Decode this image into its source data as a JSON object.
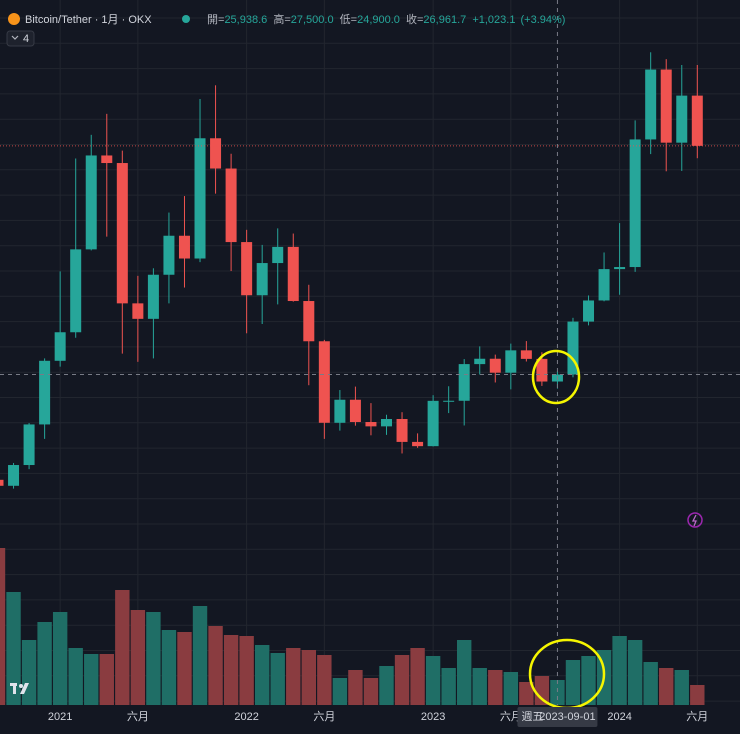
{
  "chart_data": {
    "type": "candlestick",
    "header": {
      "symbol": "Bitcoin/Tether · 1月 · OKX",
      "open": {
        "label": "開=",
        "value": "25,938.6"
      },
      "high": {
        "label": "高=",
        "value": "27,500.0"
      },
      "low": {
        "label": "低=",
        "value": "24,900.0"
      },
      "close": {
        "label": "收=",
        "value": "26,961.7"
      },
      "change": "+1,023.1",
      "change_percent": "(+3.94%)",
      "indicator_count": "4"
    },
    "x": [
      "2020-09-01",
      "2020-10-01",
      "2020-11-01",
      "2020-12-01",
      "2021-01-01",
      "2021-02-01",
      "2021-03-01",
      "2021-04-01",
      "2021-05-01",
      "2021-06-01",
      "2021-07-01",
      "2021-08-01",
      "2021-09-01",
      "2021-10-01",
      "2021-11-01",
      "2021-12-01",
      "2022-01-01",
      "2022-02-01",
      "2022-03-01",
      "2022-04-01",
      "2022-05-01",
      "2022-06-01",
      "2022-07-01",
      "2022-08-01",
      "2022-09-01",
      "2022-10-01",
      "2022-11-01",
      "2022-12-01",
      "2023-01-01",
      "2023-02-01",
      "2023-03-01",
      "2023-04-01",
      "2023-05-01",
      "2023-06-01",
      "2023-07-01",
      "2023-08-01",
      "2023-09-01",
      "2023-10-01",
      "2023-11-01",
      "2023-12-01",
      "2024-01-01",
      "2024-02-01",
      "2024-03-01",
      "2024-04-01",
      "2024-05-01",
      "2024-06-01"
    ],
    "open": [
      11650,
      10780,
      13800,
      19700,
      28950,
      33100,
      45150,
      58800,
      57700,
      37300,
      35050,
      41460,
      47130,
      43820,
      61300,
      56900,
      46210,
      38480,
      43160,
      45510,
      37640,
      31790,
      19940,
      23290,
      20050,
      19420,
      20490,
      17160,
      16540,
      23130,
      23140,
      28470,
      29250,
      27220,
      30470,
      29230,
      25938.6,
      26961.7,
      34650,
      37720,
      42280,
      42580,
      61130,
      71290,
      60660,
      67500
    ],
    "high": [
      12050,
      14100,
      19900,
      29300,
      41950,
      58350,
      61800,
      64850,
      59500,
      41300,
      42400,
      50500,
      52900,
      67000,
      69000,
      59050,
      47990,
      45800,
      48200,
      47450,
      40000,
      31990,
      24700,
      25200,
      22800,
      21100,
      21480,
      18400,
      23950,
      25250,
      29200,
      31050,
      29850,
      31450,
      31820,
      30200,
      27500,
      35200,
      38450,
      44700,
      48970,
      63900,
      73800,
      72800,
      71950,
      71950
    ],
    "low": [
      9850,
      10370,
      13200,
      17600,
      28100,
      32300,
      45000,
      47000,
      30000,
      28800,
      29300,
      37300,
      39600,
      43300,
      53250,
      42000,
      32950,
      34300,
      37150,
      37550,
      25400,
      17600,
      18800,
      19520,
      18120,
      18180,
      15480,
      16300,
      16500,
      21350,
      19550,
      26950,
      25800,
      24800,
      28850,
      25300,
      24900,
      26550,
      34100,
      37600,
      38550,
      41880,
      59000,
      56500,
      56550,
      58400
    ],
    "close": [
      10780,
      13800,
      19700,
      28950,
      33100,
      45150,
      58800,
      57700,
      37300,
      35050,
      41460,
      47130,
      43820,
      61300,
      56900,
      46210,
      38480,
      43160,
      45510,
      37640,
      31790,
      19940,
      23290,
      20050,
      19420,
      20490,
      17160,
      16540,
      23130,
      23140,
      28470,
      29250,
      27220,
      30470,
      29230,
      25938.6,
      26961.7,
      34650,
      37720,
      42280,
      42580,
      61130,
      71290,
      60660,
      67500,
      60200
    ],
    "volume": [
      157,
      113,
      65,
      83,
      93,
      57,
      51,
      51,
      115,
      95,
      93,
      75,
      73,
      99,
      79,
      70,
      69,
      60,
      52,
      57,
      55,
      50,
      27,
      35,
      27,
      39,
      50,
      57,
      49,
      37,
      65,
      37,
      35,
      33,
      23,
      29,
      25,
      45,
      49,
      55,
      69,
      65,
      43,
      37,
      35,
      20
    ],
    "ylim": [
      2900,
      81400
    ],
    "volume_ylim": [
      0,
      160
    ],
    "xticks": [
      {
        "value": "2021-01-01",
        "label": "2021"
      },
      {
        "value": "2021-06-01",
        "label": "六月"
      },
      {
        "value": "2022-01-01",
        "label": "2022"
      },
      {
        "value": "2022-06-01",
        "label": "六月"
      },
      {
        "value": "2023-01-01",
        "label": "2023"
      },
      {
        "value": "2023-06-01",
        "label": "六月"
      },
      {
        "value": "2024-01-01",
        "label": "2024"
      },
      {
        "value": "2024-06-01",
        "label": "六月"
      }
    ],
    "crosshair_weekday": "週五",
    "crosshair_index": 36,
    "up_color": "#26a69a",
    "down_color": "#ef5350",
    "volume_up_color": "#1f6e66",
    "volume_down_color": "#8a3c40",
    "grid": true
  }
}
